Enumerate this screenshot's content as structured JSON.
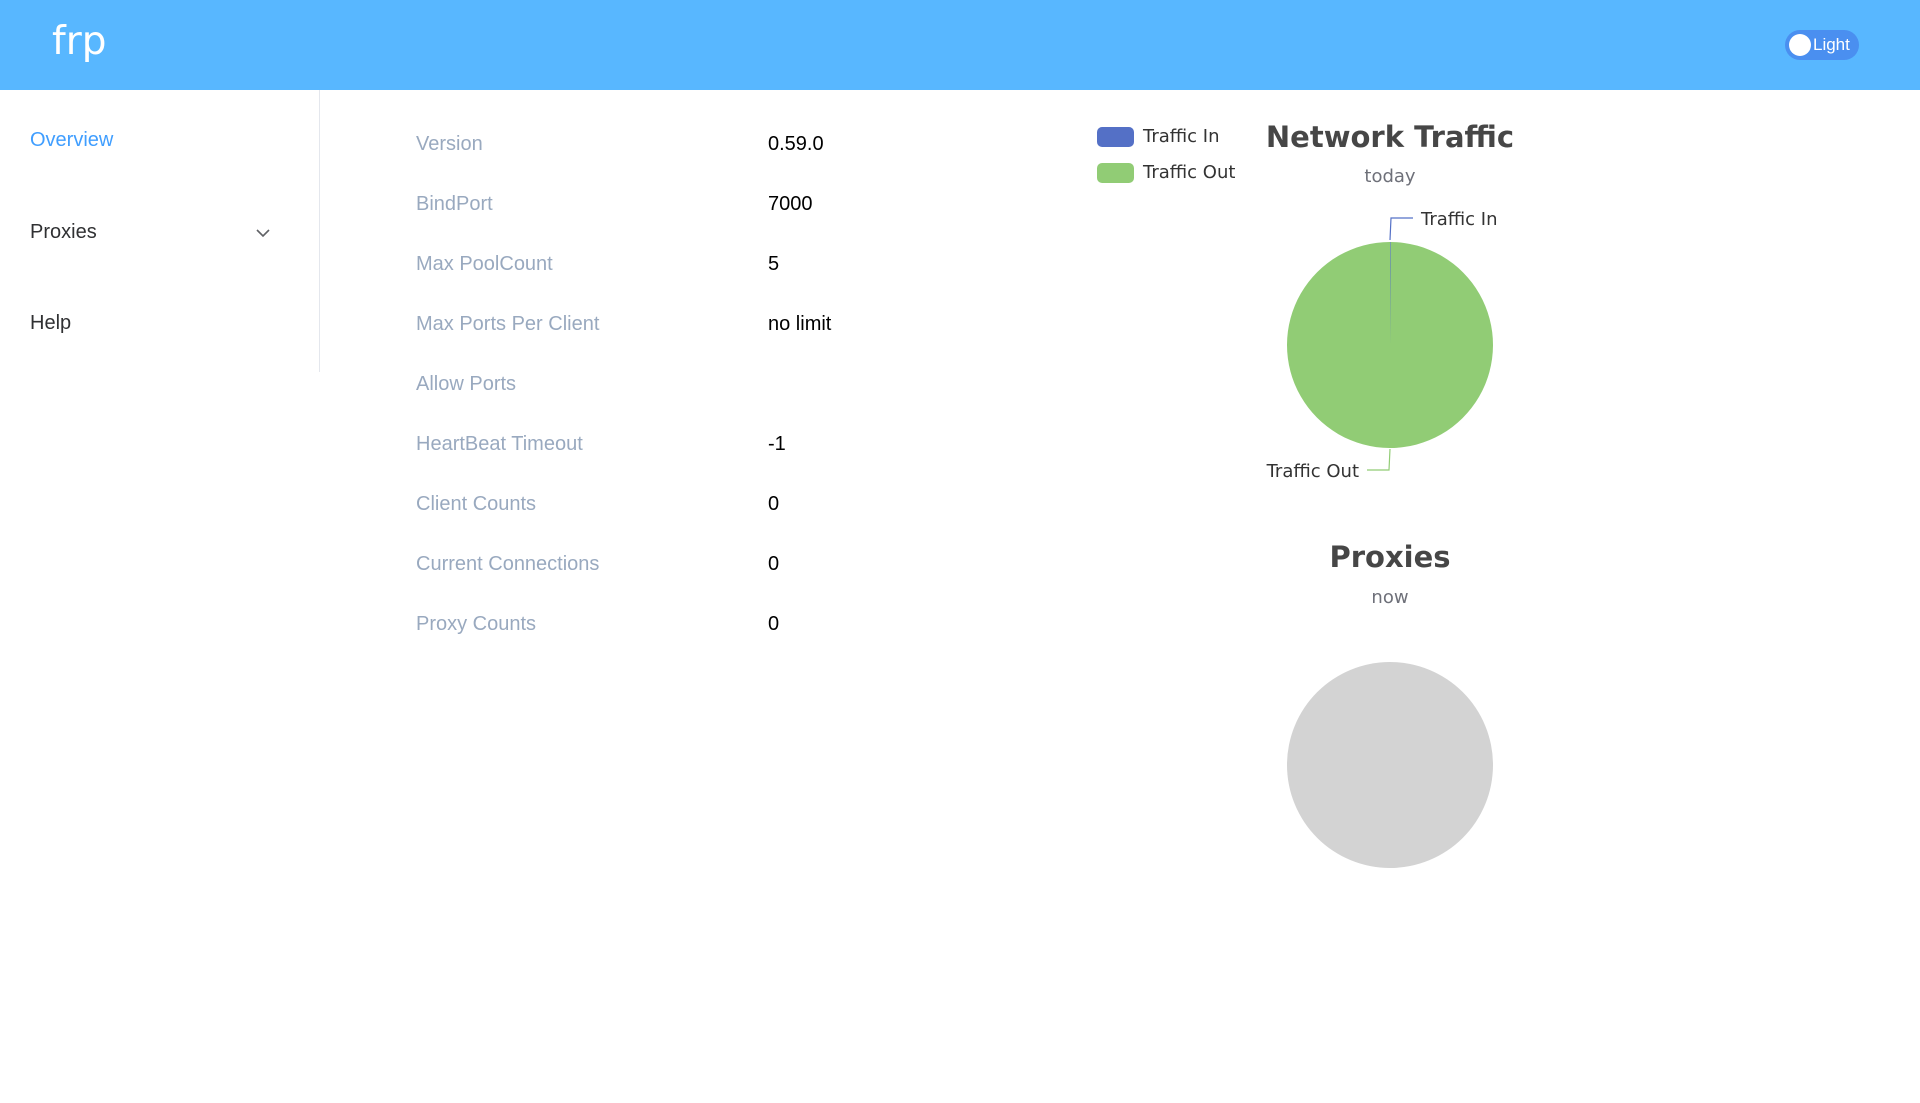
{
  "header": {
    "brand": "frp",
    "theme_label": "Light"
  },
  "sidebar": {
    "items": [
      {
        "label": "Overview",
        "active": true
      },
      {
        "label": "Proxies",
        "expandable": true
      },
      {
        "label": "Help"
      }
    ]
  },
  "server_info": [
    {
      "label": "Version",
      "value": "0.59.0"
    },
    {
      "label": "BindPort",
      "value": "7000"
    },
    {
      "label": "Max PoolCount",
      "value": "5"
    },
    {
      "label": "Max Ports Per Client",
      "value": "no limit"
    },
    {
      "label": "Allow Ports",
      "value": ""
    },
    {
      "label": "HeartBeat Timeout",
      "value": "-1"
    },
    {
      "label": "Client Counts",
      "value": "0"
    },
    {
      "label": "Current Connections",
      "value": "0"
    },
    {
      "label": "Proxy Counts",
      "value": "0"
    }
  ],
  "legend": {
    "items": [
      {
        "label": "Traffic In",
        "color": "#5470c6"
      },
      {
        "label": "Traffic Out",
        "color": "#91cc75"
      }
    ]
  },
  "chart_data": [
    {
      "type": "pie",
      "title": "Network Traffic",
      "subtitle": "today",
      "categories": [
        "Traffic In",
        "Traffic Out"
      ],
      "values": [
        0.001,
        0.999
      ],
      "colors": [
        "#5470c6",
        "#91cc75"
      ],
      "legend_position": "top-left"
    },
    {
      "type": "pie",
      "title": "Proxies",
      "subtitle": "now",
      "categories": [],
      "values": [],
      "empty_color": "#d3d3d3"
    }
  ]
}
